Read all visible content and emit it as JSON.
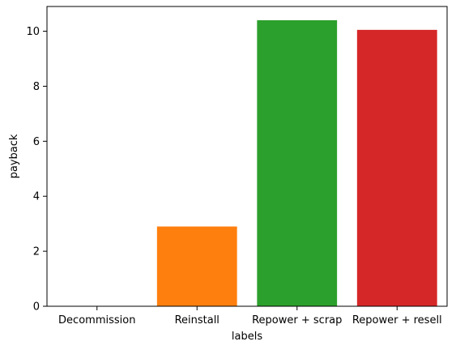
{
  "chart_data": {
    "type": "bar",
    "categories": [
      "Decommission",
      "Reinstall",
      "Repower + scrap",
      "Repower + resell"
    ],
    "values": [
      0,
      2.9,
      10.4,
      10.05
    ],
    "xlabel": "labels",
    "ylabel": "payback",
    "ylim": [
      0,
      10.9
    ],
    "yticks": [
      0,
      2,
      4,
      6,
      8,
      10
    ],
    "colors": [
      "#1f77b4",
      "#ff7f0e",
      "#2ca02c",
      "#d62728"
    ],
    "grid": false,
    "legend": "none"
  }
}
